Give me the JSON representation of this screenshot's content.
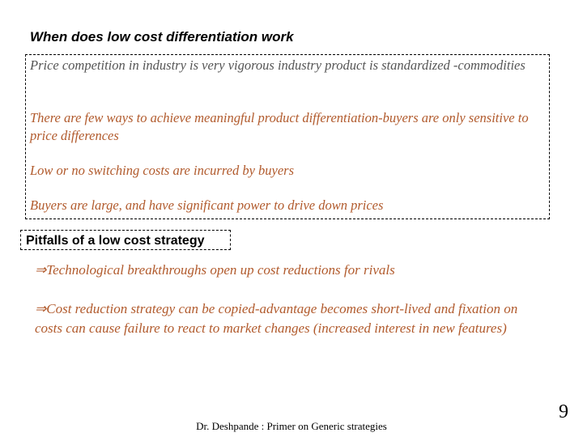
{
  "title": "When does low cost differentiation work",
  "conditions": [
    "Price competition in industry is very vigorous industry product is standardized -commodities",
    "There are few ways to achieve meaningful product differentiation-buyers are only sensitive to price differences",
    "Low or no switching costs are incurred by buyers",
    "Buyers are large, and have significant power to drive down prices"
  ],
  "pitfalls": {
    "heading": "Pitfalls of a low cost strategy",
    "items": [
      "⇒Technological breakthroughs open up cost reductions for rivals",
      "⇒Cost reduction strategy can be copied-advantage becomes short-lived and fixation on costs can cause failure to react to market changes (increased interest in new features)"
    ]
  },
  "footer": {
    "text": "Dr. Deshpande : Primer on Generic strategies",
    "page": "9"
  }
}
